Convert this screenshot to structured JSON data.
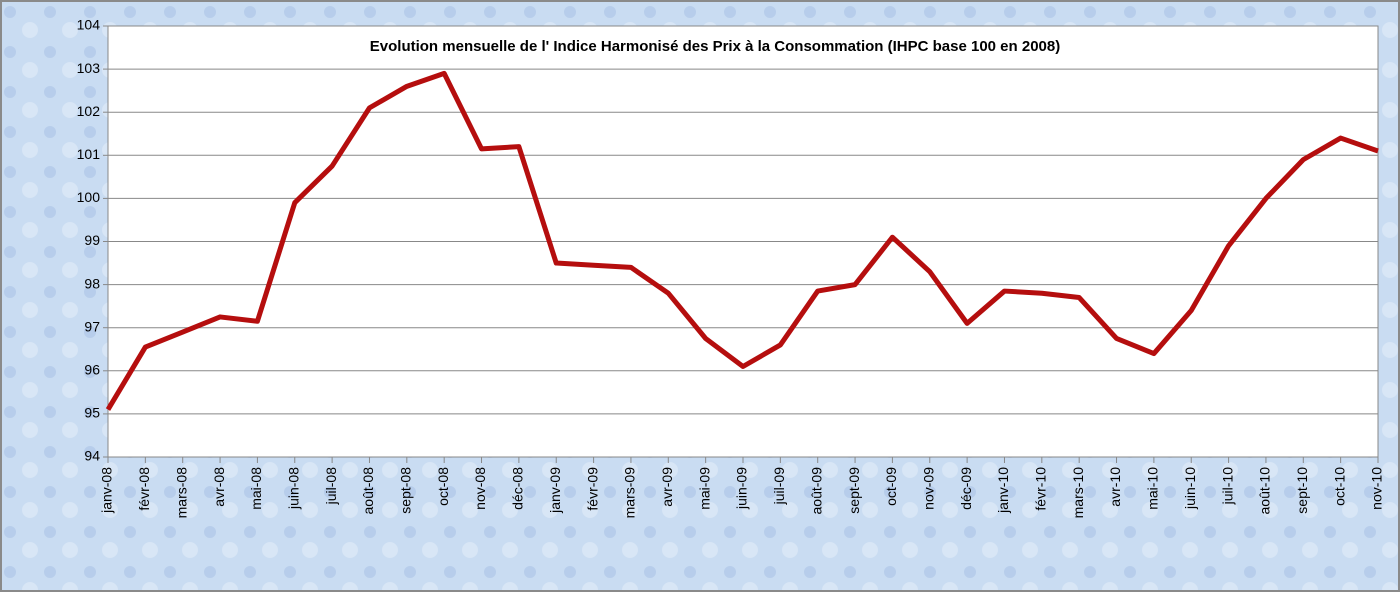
{
  "chart_data": {
    "type": "line",
    "title": "Evolution mensuelle de l' Indice Harmonisé des Prix à la Consommation (IHPC base 100 en 2008)",
    "categories": [
      "janv-08",
      "févr-08",
      "mars-08",
      "avr-08",
      "mai-08",
      "juin-08",
      "juil-08",
      "août-08",
      "sept-08",
      "oct-08",
      "nov-08",
      "déc-08",
      "janv-09",
      "févr-09",
      "mars-09",
      "avr-09",
      "mai-09",
      "juin-09",
      "juil-09",
      "août-09",
      "sept-09",
      "oct-09",
      "nov-09",
      "déc-09",
      "janv-10",
      "févr-10",
      "mars-10",
      "avr-10",
      "mai-10",
      "juin-10",
      "juil-10",
      "août-10",
      "sept-10",
      "oct-10",
      "nov-10"
    ],
    "values": [
      95.1,
      96.55,
      96.9,
      97.25,
      97.15,
      99.9,
      100.75,
      102.1,
      102.6,
      102.9,
      101.15,
      101.2,
      98.5,
      98.45,
      98.4,
      97.8,
      96.75,
      96.1,
      96.6,
      97.85,
      98.0,
      99.1,
      98.3,
      97.1,
      97.85,
      97.8,
      97.7,
      96.75,
      96.4,
      97.4,
      98.9,
      100.0,
      100.9,
      101.4,
      101.1
    ],
    "color": "#b50e0e",
    "ylim": [
      94,
      104
    ],
    "yticks": [
      94,
      95,
      96,
      97,
      98,
      99,
      100,
      101,
      102,
      103,
      104
    ],
    "grid": true
  }
}
